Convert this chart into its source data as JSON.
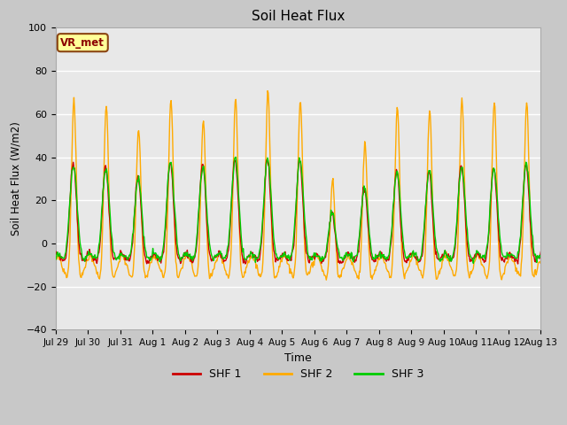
{
  "title": "Soil Heat Flux",
  "xlabel": "Time",
  "ylabel": "Soil Heat Flux (W/m2)",
  "ylim": [
    -40,
    100
  ],
  "yticks": [
    -40,
    -20,
    0,
    20,
    40,
    60,
    80,
    100
  ],
  "fig_bg_color": "#c8c8c8",
  "plot_bg_color": "#e8e8e8",
  "legend_labels": [
    "SHF 1",
    "SHF 2",
    "SHF 3"
  ],
  "legend_colors": [
    "#cc0000",
    "#ffaa00",
    "#00cc00"
  ],
  "annotation_text": "VR_met",
  "annotation_box_color": "#ffff99",
  "annotation_border_color": "#8b4513",
  "x_tick_labels": [
    "Jul 29",
    "Jul 30",
    "Jul 31",
    "Aug 1",
    "Aug 2",
    "Aug 3",
    "Aug 4",
    "Aug 5",
    "Aug 6",
    "Aug 7",
    "Aug 8",
    "Aug 9",
    "Aug 10",
    "Aug 11",
    "Aug 12",
    "Aug 13"
  ],
  "n_days": 15,
  "n_points_per_day": 48
}
